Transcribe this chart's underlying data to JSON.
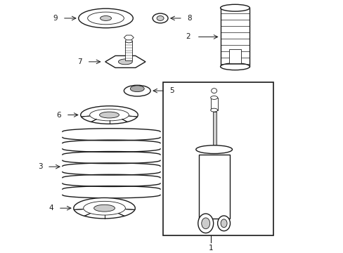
{
  "bg_color": "#ffffff",
  "line_color": "#1a1a1a",
  "gray_color": "#777777",
  "light_gray": "#cccccc",
  "mid_gray": "#aaaaaa",
  "fig_width": 4.89,
  "fig_height": 3.6,
  "dpi": 100
}
